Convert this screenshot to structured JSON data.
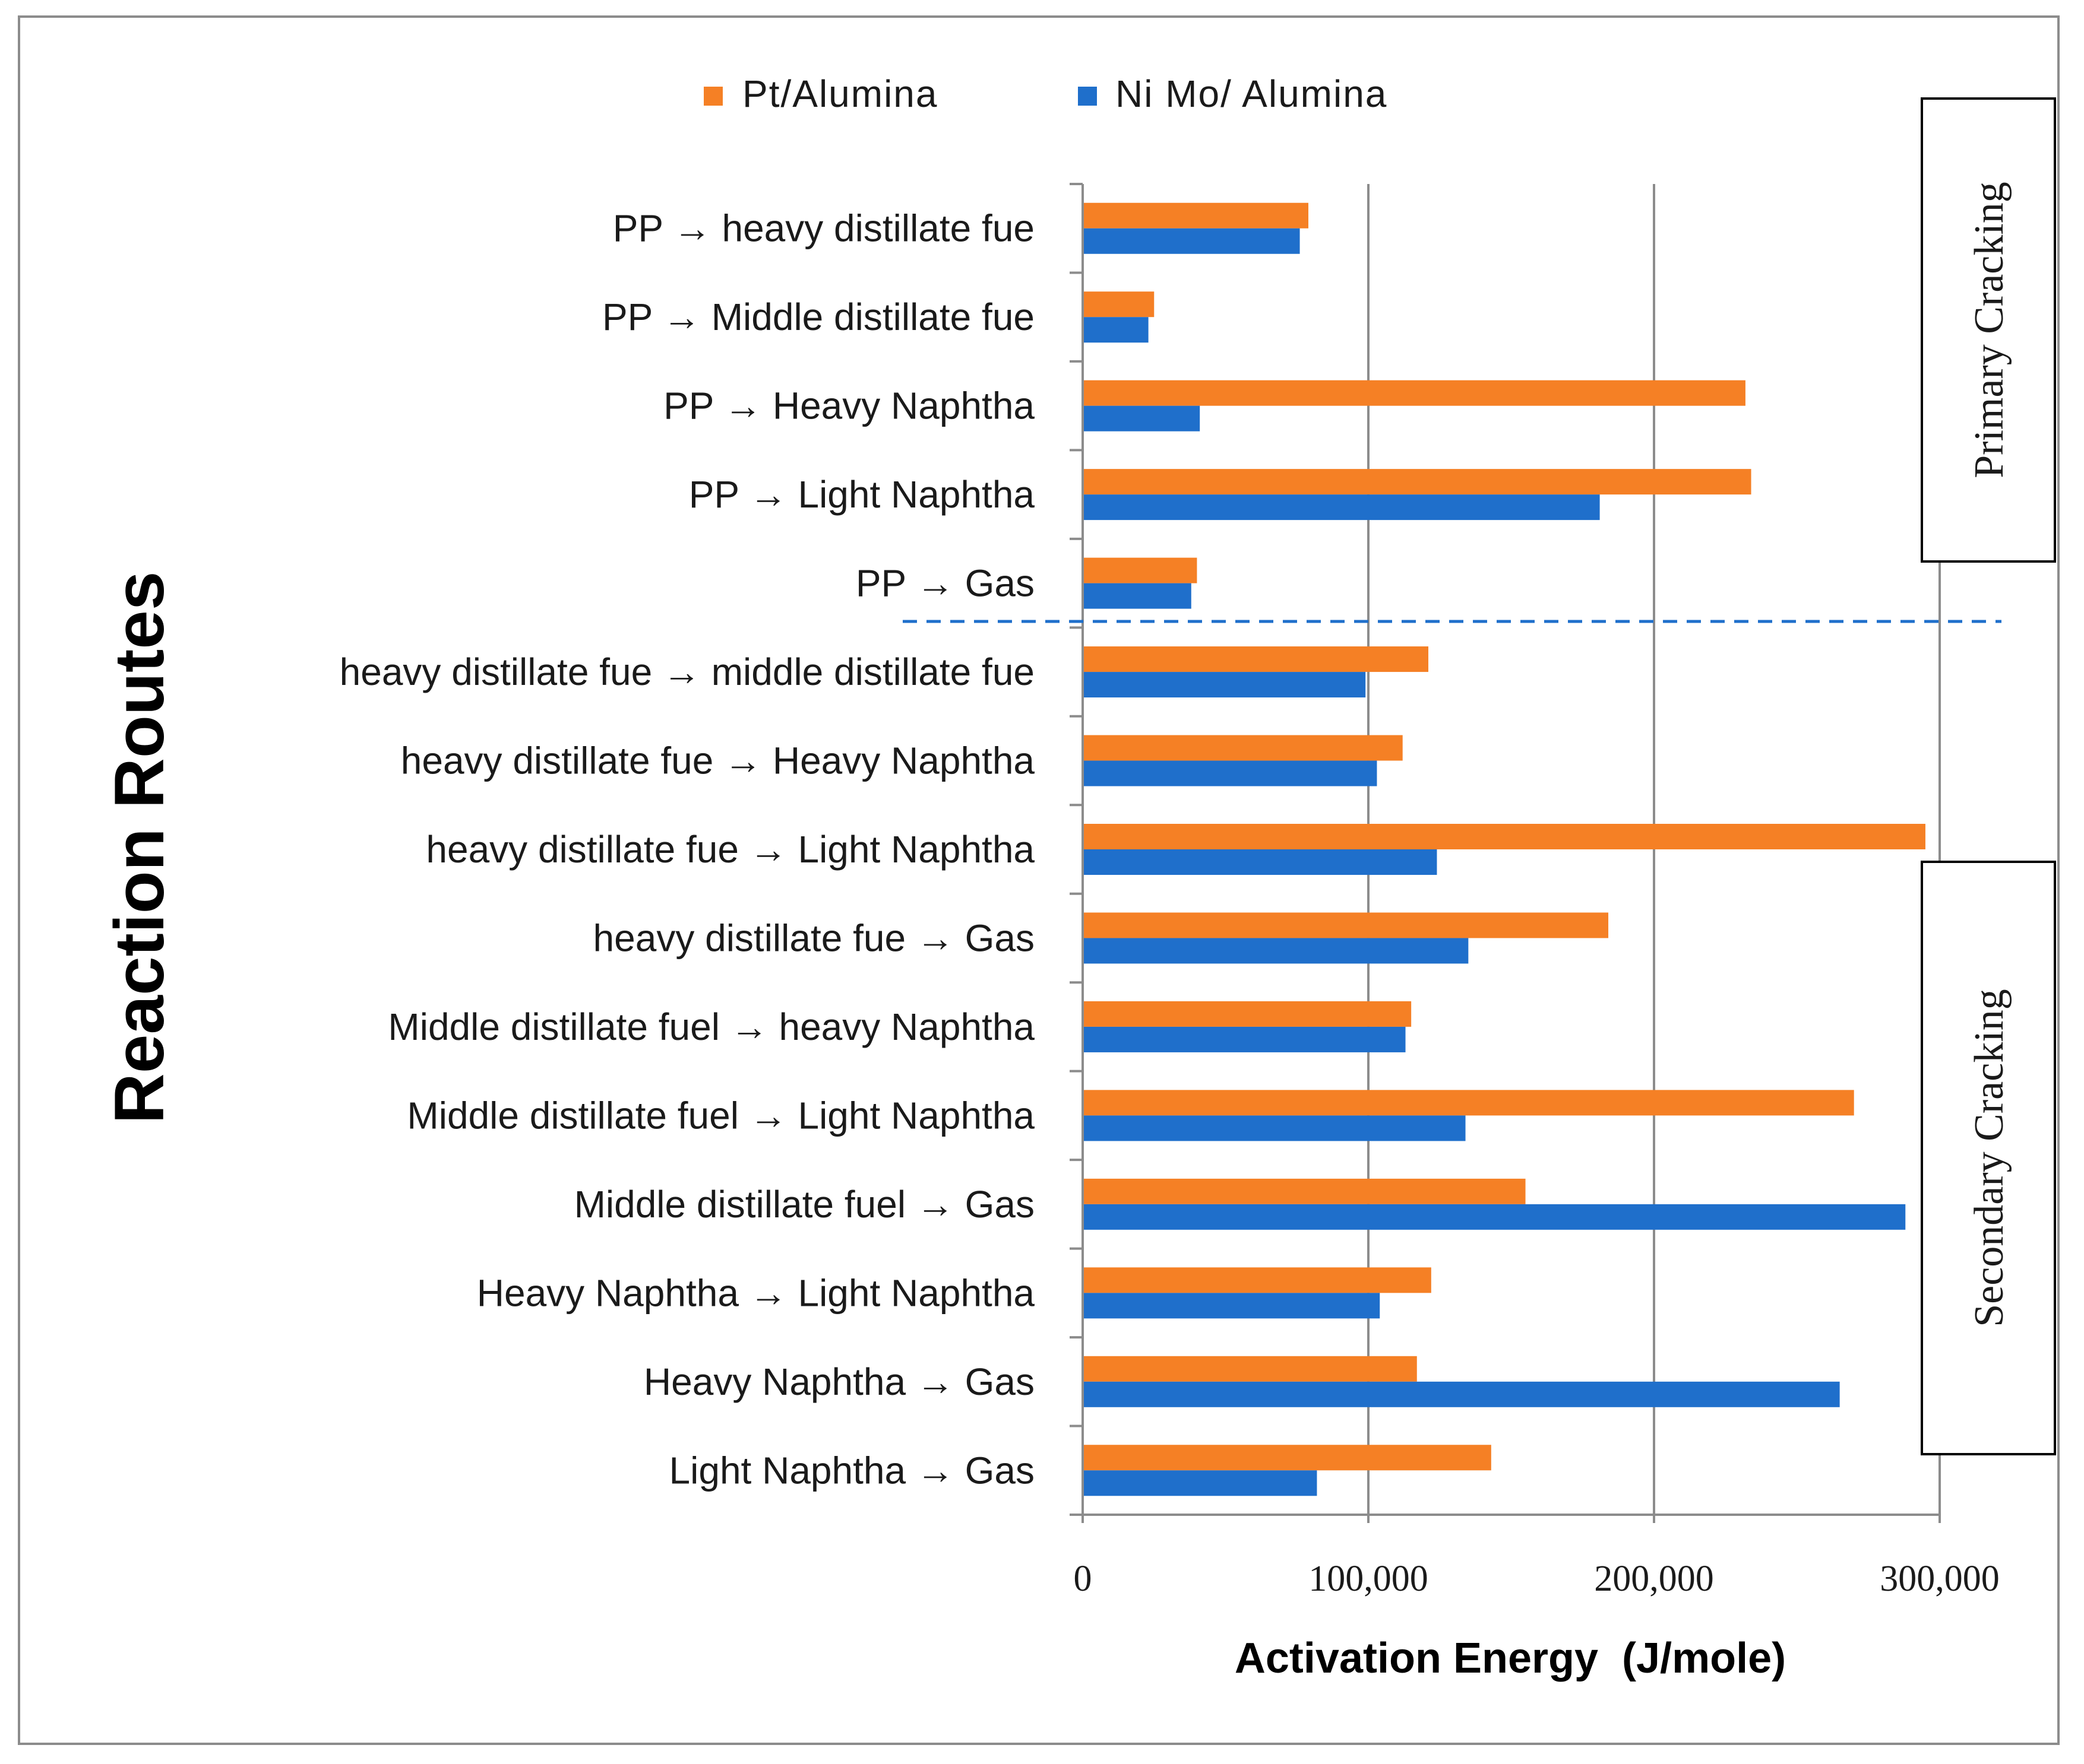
{
  "chart_data": {
    "type": "bar",
    "orientation": "horizontal",
    "title": "",
    "xlabel": "Activation Energy  (J/mole)",
    "ylabel": "Reaction Routes",
    "xlim": [
      0,
      300000
    ],
    "xticks": [
      0,
      100000,
      200000,
      300000
    ],
    "xtick_labels": [
      "0",
      "100,000",
      "200,000",
      "300,000"
    ],
    "grid": "vertical",
    "legend_position": "top",
    "categories": [
      "PP → heavy distillate fue",
      "PP → Middle distillate fue",
      "PP → Heavy Naphtha",
      "PP → Light Naphtha",
      "PP → Gas",
      "heavy distillate fue → middle distillate fue",
      "heavy distillate fue → Heavy Naphtha",
      "heavy distillate fue → Light Naphtha",
      "heavy distillate fue → Gas",
      "Middle distillate fuel → heavy Naphtha",
      "Middle distillate fuel → Light Naphtha",
      "Middle distillate fuel → Gas",
      "Heavy Naphtha → Light Naphtha",
      "Heavy Naphtha → Gas",
      "Light Naphtha → Gas"
    ],
    "series": [
      {
        "name": "Pt/Alumina",
        "color": "#F58025",
        "values": [
          79000,
          25000,
          232000,
          234000,
          40000,
          121000,
          112000,
          295000,
          184000,
          115000,
          270000,
          155000,
          122000,
          117000,
          143000
        ]
      },
      {
        "name": "Ni Mo/ Alumina",
        "color": "#1F6FCB",
        "values": [
          76000,
          23000,
          41000,
          181000,
          38000,
          99000,
          103000,
          124000,
          135000,
          113000,
          134000,
          288000,
          104000,
          265000,
          82000
        ]
      }
    ],
    "annotations": [
      {
        "text": "Primary Cracking",
        "applies_to": "categories 1-5"
      },
      {
        "text": "Secondary Cracking",
        "applies_to": "categories 6-15"
      }
    ]
  }
}
